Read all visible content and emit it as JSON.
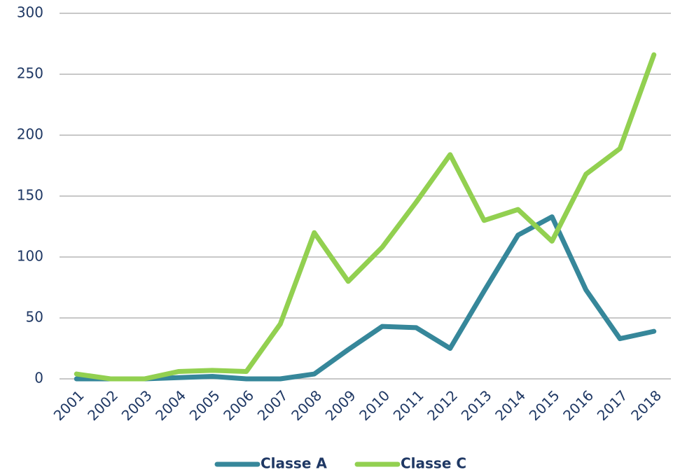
{
  "chart_data": {
    "type": "line",
    "categories": [
      "2001",
      "2002",
      "2003",
      "2004",
      "2005",
      "2006",
      "2007",
      "2008",
      "2009",
      "2010",
      "2011",
      "2012",
      "2013",
      "2014",
      "2015",
      "2016",
      "2017",
      "2018"
    ],
    "series": [
      {
        "name": "Classe A",
        "color": "#36879a",
        "values": [
          0,
          0,
          0,
          1,
          2,
          0,
          0,
          4,
          24,
          43,
          42,
          25,
          72,
          118,
          133,
          73,
          33,
          39
        ]
      },
      {
        "name": "Classe C",
        "color": "#92d050",
        "values": [
          4,
          0,
          0,
          6,
          7,
          6,
          45,
          120,
          80,
          108,
          145,
          184,
          130,
          139,
          113,
          168,
          189,
          266
        ]
      }
    ],
    "ylim": [
      0,
      300
    ],
    "yticks": [
      0,
      50,
      100,
      150,
      200,
      250,
      300
    ],
    "grid": true,
    "legend": "bottom"
  }
}
